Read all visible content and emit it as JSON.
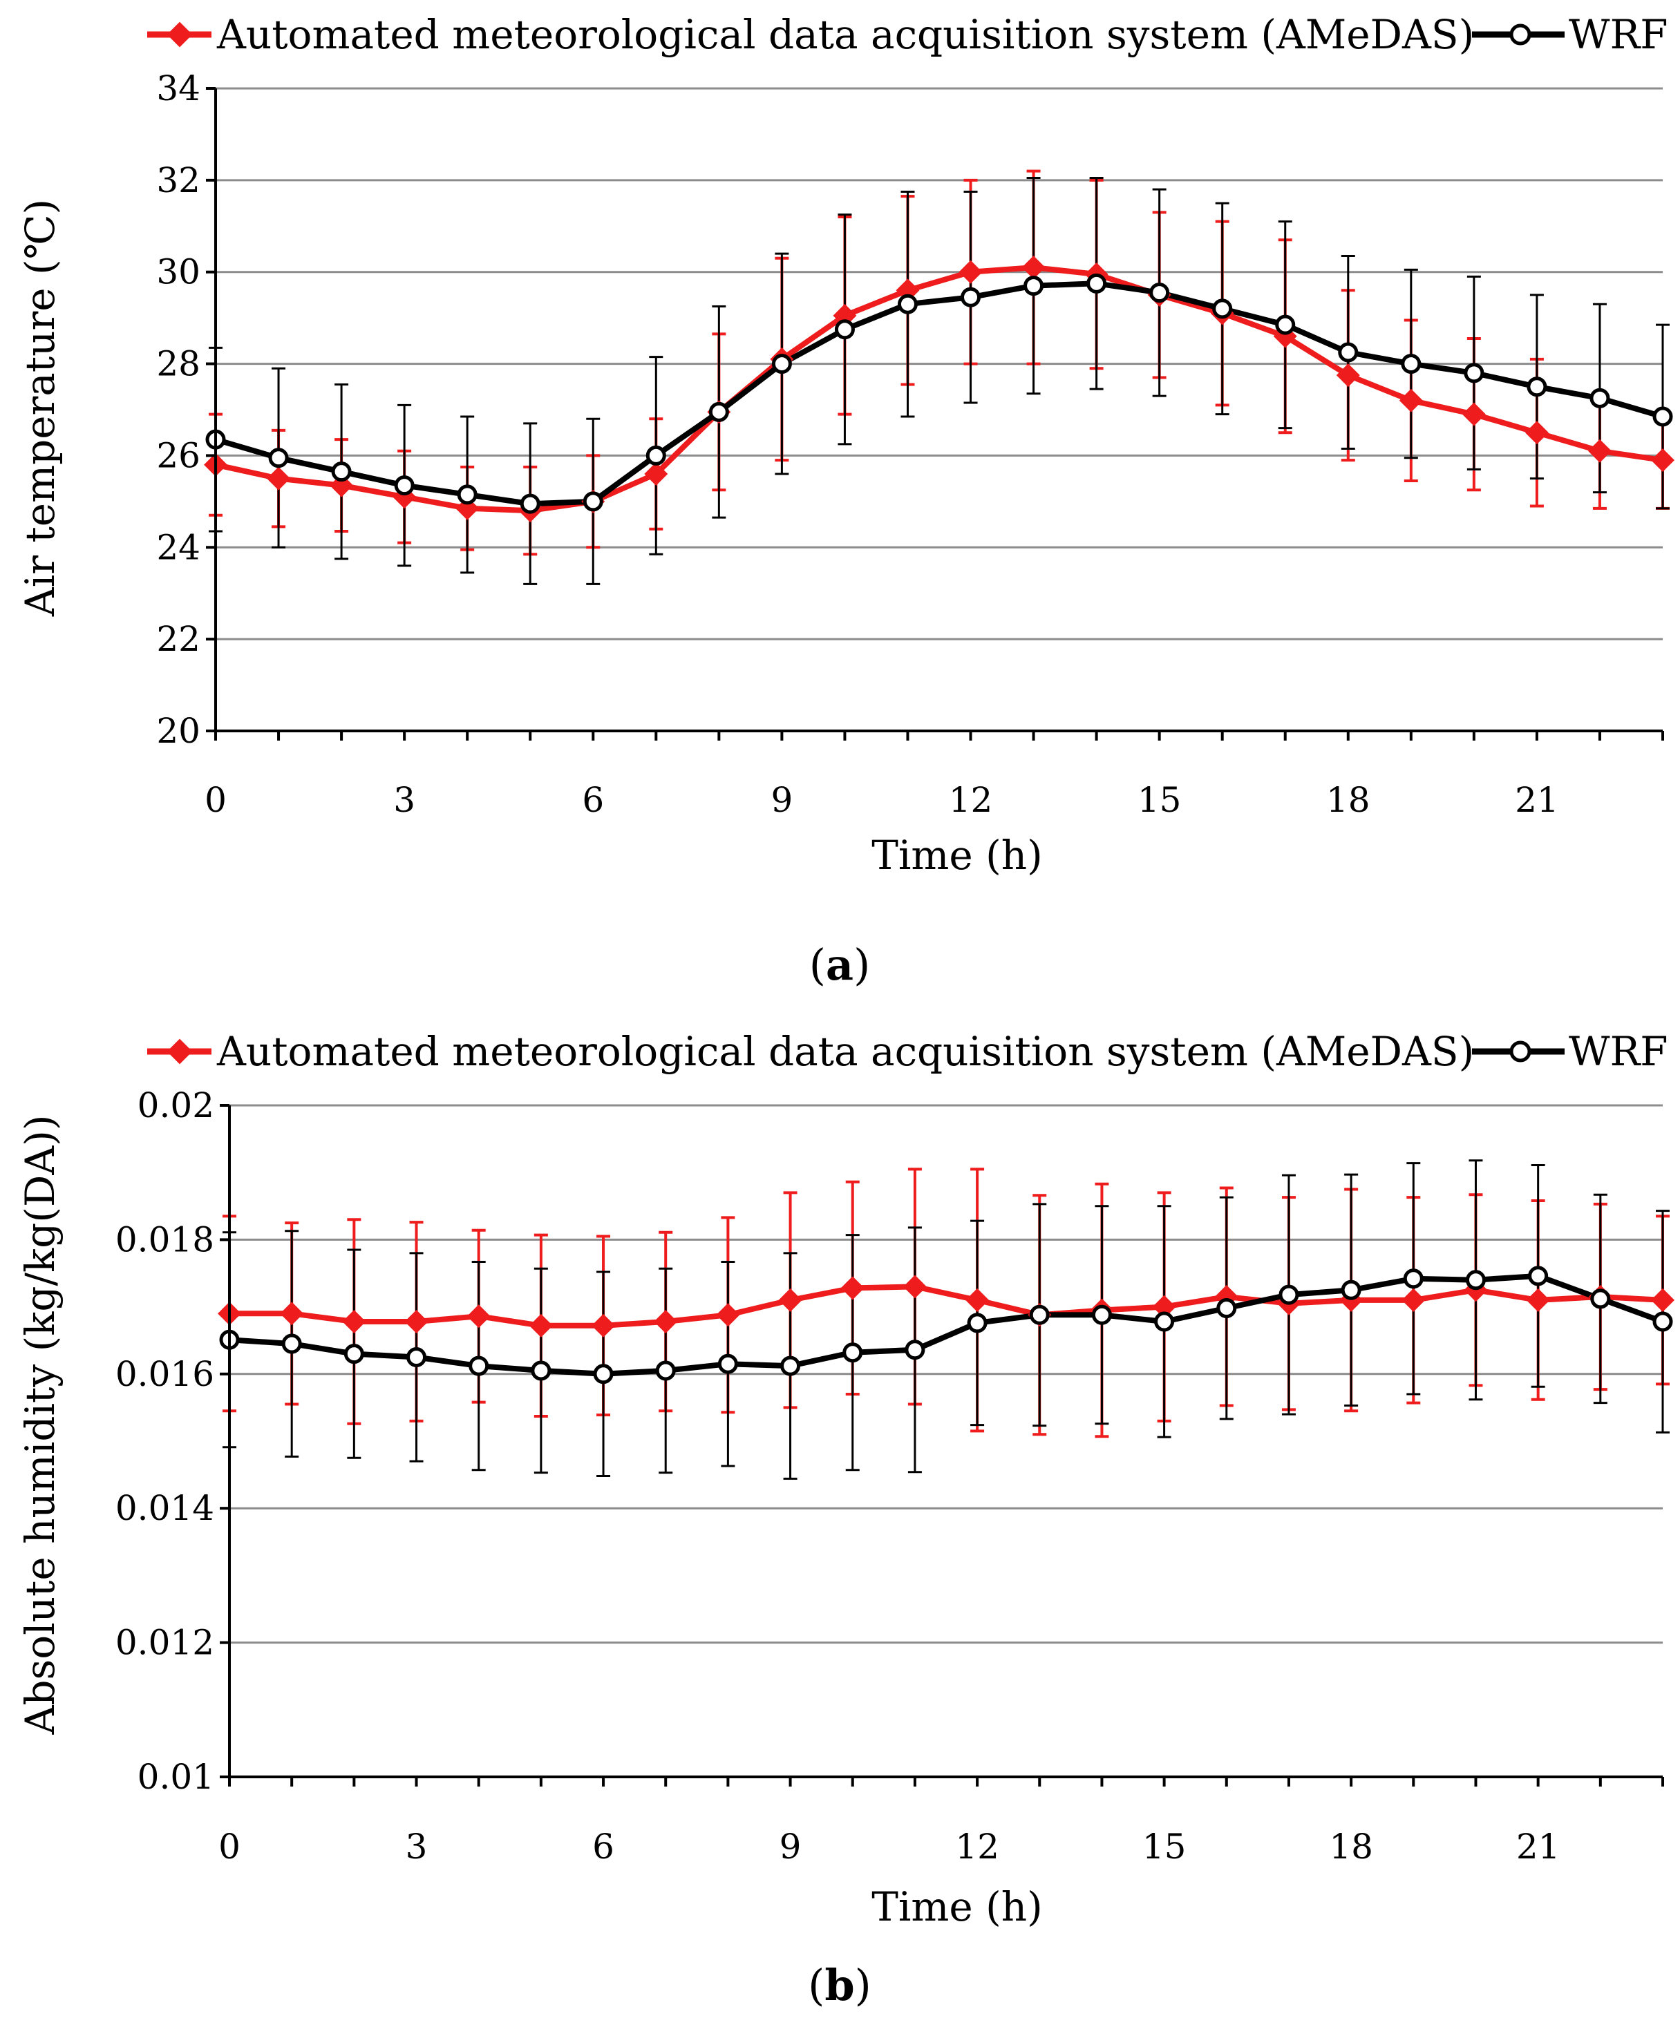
{
  "colors": {
    "amedas": "#ee1c1c",
    "wrf": "#000000",
    "grid": "#8c8c8c",
    "axis": "#000000"
  },
  "chart_data": [
    {
      "type": "line",
      "panel": "a",
      "caption": {
        "open": "(",
        "letter": "a",
        "close": ")"
      },
      "xlabel": "Time (h)",
      "ylabel": "Air temperature (℃)",
      "xlim": [
        0,
        23
      ],
      "ylim": [
        20,
        34
      ],
      "xticks": [
        0,
        3,
        6,
        9,
        12,
        15,
        18,
        21
      ],
      "yticks": [
        20,
        22,
        24,
        26,
        28,
        30,
        32,
        34
      ],
      "ytick_labels": [
        "20",
        "22",
        "24",
        "26",
        "28",
        "30",
        "32",
        "34"
      ],
      "grid": true,
      "legend": "top",
      "x": [
        0,
        1,
        2,
        3,
        4,
        5,
        6,
        7,
        8,
        9,
        10,
        11,
        12,
        13,
        14,
        15,
        16,
        17,
        18,
        19,
        20,
        21,
        22,
        23
      ],
      "series": [
        {
          "name": "Automated meteorological data acquisition system (AMeDAS)",
          "marker": "diamond",
          "values": [
            25.8,
            25.5,
            25.35,
            25.1,
            24.85,
            24.8,
            25.0,
            25.6,
            26.95,
            28.1,
            29.05,
            29.6,
            30.0,
            30.1,
            29.95,
            29.5,
            29.1,
            28.6,
            27.75,
            27.2,
            26.9,
            26.5,
            26.1,
            25.9
          ],
          "errors": [
            1.1,
            1.05,
            1.0,
            1.0,
            0.9,
            0.95,
            1.0,
            1.2,
            1.7,
            2.2,
            2.15,
            2.05,
            2.0,
            2.1,
            2.05,
            1.8,
            2.0,
            2.1,
            1.85,
            1.75,
            1.65,
            1.6,
            1.25,
            1.05
          ]
        },
        {
          "name": "WRF",
          "marker": "circle",
          "values": [
            26.35,
            25.95,
            25.65,
            25.35,
            25.15,
            24.95,
            25.0,
            26.0,
            26.95,
            28.0,
            28.75,
            29.3,
            29.45,
            29.7,
            29.75,
            29.55,
            29.2,
            28.85,
            28.25,
            28.0,
            27.8,
            27.5,
            27.25,
            26.85
          ],
          "errors": [
            2.0,
            1.95,
            1.9,
            1.75,
            1.7,
            1.75,
            1.8,
            2.15,
            2.3,
            2.4,
            2.5,
            2.45,
            2.3,
            2.35,
            2.3,
            2.25,
            2.3,
            2.25,
            2.1,
            2.05,
            2.1,
            2.0,
            2.05,
            2.0
          ]
        }
      ]
    },
    {
      "type": "line",
      "panel": "b",
      "caption": {
        "open": "(",
        "letter": "b",
        "close": ")"
      },
      "xlabel": "Time (h)",
      "ylabel": "Absolute humidity (kg/kg(DA))",
      "xlim": [
        0,
        23
      ],
      "ylim": [
        0.01,
        0.02
      ],
      "xticks": [
        0,
        3,
        6,
        9,
        12,
        15,
        18,
        21
      ],
      "yticks": [
        0.01,
        0.012,
        0.014,
        0.016,
        0.018,
        0.02
      ],
      "ytick_labels": [
        "0.01",
        "0.012",
        "0.014",
        "0.016",
        "0.018",
        "0.02"
      ],
      "grid": true,
      "legend": "top",
      "x": [
        0,
        1,
        2,
        3,
        4,
        5,
        6,
        7,
        8,
        9,
        10,
        11,
        12,
        13,
        14,
        15,
        16,
        17,
        18,
        19,
        20,
        21,
        22,
        23
      ],
      "series": [
        {
          "name": "Automated meteorological data acquisition system (AMeDAS)",
          "marker": "diamond",
          "values": [
            0.0169,
            0.0169,
            0.01678,
            0.01678,
            0.01686,
            0.01672,
            0.01672,
            0.01678,
            0.01688,
            0.0171,
            0.01728,
            0.0173,
            0.0171,
            0.01688,
            0.01695,
            0.017,
            0.01715,
            0.01705,
            0.0171,
            0.0171,
            0.01725,
            0.0171,
            0.01715,
            0.0171
          ],
          "errors": [
            0.00145,
            0.00135,
            0.00152,
            0.00148,
            0.00128,
            0.00135,
            0.00133,
            0.00133,
            0.00145,
            0.0016,
            0.00158,
            0.00175,
            0.00195,
            0.00178,
            0.00188,
            0.0017,
            0.00162,
            0.00158,
            0.00165,
            0.00153,
            0.00142,
            0.00148,
            0.00138,
            0.00125
          ]
        },
        {
          "name": "WRF",
          "marker": "circle",
          "values": [
            0.01651,
            0.01645,
            0.0163,
            0.01625,
            0.01612,
            0.01605,
            0.016,
            0.01605,
            0.01615,
            0.01612,
            0.01632,
            0.01636,
            0.01676,
            0.01688,
            0.01688,
            0.01678,
            0.01698,
            0.01718,
            0.01725,
            0.01742,
            0.0174,
            0.01746,
            0.01712,
            0.01678
          ],
          "errors": [
            0.0016,
            0.00168,
            0.00155,
            0.00155,
            0.00155,
            0.00152,
            0.00152,
            0.00152,
            0.00152,
            0.00168,
            0.00175,
            0.00182,
            0.00152,
            0.00165,
            0.00162,
            0.00172,
            0.00165,
            0.00178,
            0.00172,
            0.00172,
            0.00178,
            0.00165,
            0.00155,
            0.00165
          ]
        }
      ]
    }
  ]
}
